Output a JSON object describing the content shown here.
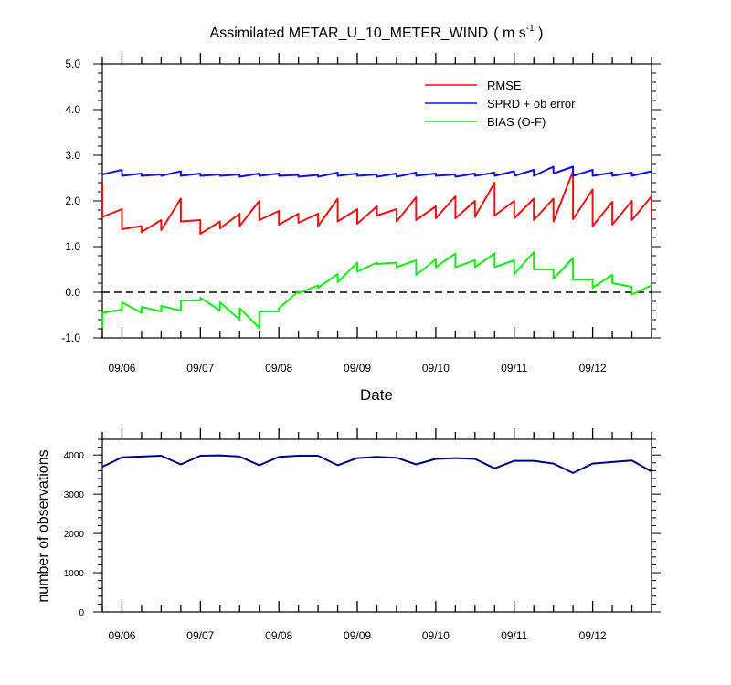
{
  "chart_data": [
    {
      "type": "line",
      "title": "Assimilated METAR_U_10_METER_WIND",
      "title_units": "( m s",
      "title_units_sup": "-1",
      "title_units_end": " )",
      "xlabel": "Date",
      "ylabel": "",
      "xlim": [
        0,
        7.0
      ],
      "ylim": [
        -1.0,
        5.0
      ],
      "x_unit": "days since 09/06 00Z",
      "yticks": [
        "5.0",
        "4.0",
        "3.0",
        "2.0",
        "1.0",
        "0.0",
        "-1.0"
      ],
      "ytick_values": [
        5,
        4,
        3,
        2,
        1,
        0,
        -1
      ],
      "xtick_labels": [
        "09/06",
        "09/07",
        "09/08",
        "09/09",
        "09/10",
        "09/11",
        "09/12"
      ],
      "xtick_values": [
        0.25,
        1.25,
        2.25,
        3.25,
        4.25,
        5.25,
        6.25
      ],
      "zero_line": true,
      "legend_position": "top-right",
      "series": [
        {
          "name": "RMSE",
          "color": "#ee1111",
          "points": [
            [
              0,
              2.4
            ],
            [
              0,
              1.65
            ],
            [
              0.25,
              1.82
            ],
            [
              0.25,
              1.38
            ],
            [
              0.5,
              1.45
            ],
            [
              0.5,
              1.32
            ],
            [
              0.75,
              1.58
            ],
            [
              0.75,
              1.36
            ],
            [
              1.0,
              2.05
            ],
            [
              1.0,
              1.55
            ],
            [
              1.25,
              1.58
            ],
            [
              1.25,
              1.28
            ],
            [
              1.5,
              1.55
            ],
            [
              1.5,
              1.4
            ],
            [
              1.75,
              1.72
            ],
            [
              1.75,
              1.45
            ],
            [
              2.0,
              2.0
            ],
            [
              2.0,
              1.58
            ],
            [
              2.25,
              1.78
            ],
            [
              2.25,
              1.48
            ],
            [
              2.5,
              1.72
            ],
            [
              2.5,
              1.52
            ],
            [
              2.75,
              1.72
            ],
            [
              2.75,
              1.45
            ],
            [
              3.0,
              2.05
            ],
            [
              3.0,
              1.55
            ],
            [
              3.25,
              1.82
            ],
            [
              3.25,
              1.5
            ],
            [
              3.5,
              1.88
            ],
            [
              3.5,
              1.68
            ],
            [
              3.75,
              1.82
            ],
            [
              3.75,
              1.55
            ],
            [
              4.0,
              2.08
            ],
            [
              4.0,
              1.58
            ],
            [
              4.25,
              1.88
            ],
            [
              4.25,
              1.62
            ],
            [
              4.5,
              2.1
            ],
            [
              4.5,
              1.62
            ],
            [
              4.75,
              2.0
            ],
            [
              4.75,
              1.65
            ],
            [
              5.0,
              2.4
            ],
            [
              5.0,
              1.68
            ],
            [
              5.25,
              2.0
            ],
            [
              5.25,
              1.62
            ],
            [
              5.5,
              2.05
            ],
            [
              5.5,
              1.58
            ],
            [
              5.75,
              2.05
            ],
            [
              5.75,
              1.55
            ],
            [
              6.0,
              2.65
            ],
            [
              6.0,
              1.6
            ],
            [
              6.25,
              2.25
            ],
            [
              6.25,
              1.45
            ],
            [
              6.5,
              1.98
            ],
            [
              6.5,
              1.48
            ],
            [
              6.75,
              2.0
            ],
            [
              6.75,
              1.58
            ],
            [
              7.0,
              2.1
            ],
            [
              7.0,
              1.6
            ]
          ]
        },
        {
          "name": "SPRD + ob error",
          "color": "#1111dd",
          "points": [
            [
              0,
              2.58
            ],
            [
              0.25,
              2.68
            ],
            [
              0.25,
              2.55
            ],
            [
              0.5,
              2.6
            ],
            [
              0.5,
              2.55
            ],
            [
              0.75,
              2.58
            ],
            [
              0.75,
              2.55
            ],
            [
              1.0,
              2.65
            ],
            [
              1.0,
              2.55
            ],
            [
              1.25,
              2.6
            ],
            [
              1.25,
              2.55
            ],
            [
              1.5,
              2.58
            ],
            [
              1.5,
              2.55
            ],
            [
              1.75,
              2.58
            ],
            [
              1.75,
              2.53
            ],
            [
              2.0,
              2.6
            ],
            [
              2.0,
              2.55
            ],
            [
              2.25,
              2.6
            ],
            [
              2.25,
              2.55
            ],
            [
              2.5,
              2.57
            ],
            [
              2.5,
              2.53
            ],
            [
              2.75,
              2.57
            ],
            [
              2.75,
              2.53
            ],
            [
              3.0,
              2.62
            ],
            [
              3.0,
              2.55
            ],
            [
              3.25,
              2.6
            ],
            [
              3.25,
              2.55
            ],
            [
              3.5,
              2.58
            ],
            [
              3.5,
              2.53
            ],
            [
              3.75,
              2.6
            ],
            [
              3.75,
              2.53
            ],
            [
              4.0,
              2.62
            ],
            [
              4.0,
              2.55
            ],
            [
              4.25,
              2.6
            ],
            [
              4.25,
              2.55
            ],
            [
              4.5,
              2.58
            ],
            [
              4.5,
              2.53
            ],
            [
              4.75,
              2.6
            ],
            [
              4.75,
              2.55
            ],
            [
              5.0,
              2.62
            ],
            [
              5.0,
              2.55
            ],
            [
              5.25,
              2.65
            ],
            [
              5.25,
              2.55
            ],
            [
              5.5,
              2.68
            ],
            [
              5.5,
              2.55
            ],
            [
              5.75,
              2.75
            ],
            [
              5.75,
              2.6
            ],
            [
              6.0,
              2.75
            ],
            [
              6.0,
              2.55
            ],
            [
              6.25,
              2.68
            ],
            [
              6.25,
              2.55
            ],
            [
              6.5,
              2.62
            ],
            [
              6.5,
              2.55
            ],
            [
              6.75,
              2.62
            ],
            [
              6.75,
              2.55
            ],
            [
              7.0,
              2.65
            ]
          ]
        },
        {
          "name": "BIAS (O-F)",
          "color": "#11ee11",
          "points": [
            [
              0,
              -0.78
            ],
            [
              0,
              -0.45
            ],
            [
              0.25,
              -0.38
            ],
            [
              0.25,
              -0.22
            ],
            [
              0.5,
              -0.45
            ],
            [
              0.5,
              -0.32
            ],
            [
              0.75,
              -0.42
            ],
            [
              0.75,
              -0.3
            ],
            [
              1.0,
              -0.4
            ],
            [
              1.0,
              -0.18
            ],
            [
              1.25,
              -0.18
            ],
            [
              1.25,
              -0.12
            ],
            [
              1.5,
              -0.4
            ],
            [
              1.5,
              -0.22
            ],
            [
              1.75,
              -0.6
            ],
            [
              1.75,
              -0.35
            ],
            [
              2.0,
              -0.78
            ],
            [
              2.0,
              -0.42
            ],
            [
              2.25,
              -0.42
            ],
            [
              2.25,
              -0.35
            ],
            [
              2.5,
              0.02
            ],
            [
              2.5,
              -0.02
            ],
            [
              2.75,
              0.15
            ],
            [
              2.75,
              0.1
            ],
            [
              3.0,
              0.4
            ],
            [
              3.0,
              0.22
            ],
            [
              3.25,
              0.65
            ],
            [
              3.25,
              0.45
            ],
            [
              3.5,
              0.65
            ],
            [
              3.5,
              0.62
            ],
            [
              3.75,
              0.65
            ],
            [
              3.75,
              0.55
            ],
            [
              4.0,
              0.7
            ],
            [
              4.0,
              0.38
            ],
            [
              4.25,
              0.72
            ],
            [
              4.25,
              0.55
            ],
            [
              4.5,
              0.85
            ],
            [
              4.5,
              0.55
            ],
            [
              4.75,
              0.7
            ],
            [
              4.75,
              0.55
            ],
            [
              5.0,
              0.85
            ],
            [
              5.0,
              0.55
            ],
            [
              5.25,
              0.7
            ],
            [
              5.25,
              0.4
            ],
            [
              5.5,
              0.88
            ],
            [
              5.5,
              0.5
            ],
            [
              5.75,
              0.5
            ],
            [
              5.75,
              0.3
            ],
            [
              6.0,
              0.75
            ],
            [
              6.0,
              0.28
            ],
            [
              6.25,
              0.28
            ],
            [
              6.25,
              0.1
            ],
            [
              6.5,
              0.38
            ],
            [
              6.5,
              0.2
            ],
            [
              6.75,
              0.12
            ],
            [
              6.75,
              -0.05
            ],
            [
              7.0,
              0.15
            ]
          ]
        }
      ]
    },
    {
      "type": "line",
      "title": "",
      "xlabel": "",
      "ylabel": "number of observations",
      "xlim": [
        0,
        7.0
      ],
      "ylim": [
        0,
        4400
      ],
      "yticks": [
        "4000",
        "3000",
        "2000",
        "1000",
        "0"
      ],
      "ytick_values": [
        4000,
        3000,
        2000,
        1000,
        0
      ],
      "xtick_labels": [
        "09/06",
        "09/07",
        "09/08",
        "09/09",
        "09/10",
        "09/11",
        "09/12"
      ],
      "xtick_values": [
        0.25,
        1.25,
        2.25,
        3.25,
        4.25,
        5.25,
        6.25
      ],
      "series": [
        {
          "name": "",
          "color": "#000080",
          "points": [
            [
              0,
              3700
            ],
            [
              0.25,
              3940
            ],
            [
              0.5,
              3960
            ],
            [
              0.75,
              3980
            ],
            [
              1.0,
              3760
            ],
            [
              1.25,
              3980
            ],
            [
              1.5,
              3990
            ],
            [
              1.75,
              3960
            ],
            [
              2.0,
              3740
            ],
            [
              2.25,
              3950
            ],
            [
              2.5,
              3980
            ],
            [
              2.75,
              3980
            ],
            [
              3.0,
              3740
            ],
            [
              3.25,
              3920
            ],
            [
              3.5,
              3950
            ],
            [
              3.75,
              3930
            ],
            [
              4.0,
              3760
            ],
            [
              4.25,
              3900
            ],
            [
              4.5,
              3920
            ],
            [
              4.75,
              3900
            ],
            [
              5.0,
              3660
            ],
            [
              5.25,
              3850
            ],
            [
              5.5,
              3850
            ],
            [
              5.75,
              3780
            ],
            [
              6.0,
              3540
            ],
            [
              6.25,
              3780
            ],
            [
              6.5,
              3820
            ],
            [
              6.75,
              3860
            ],
            [
              7.0,
              3580
            ]
          ]
        }
      ]
    }
  ]
}
